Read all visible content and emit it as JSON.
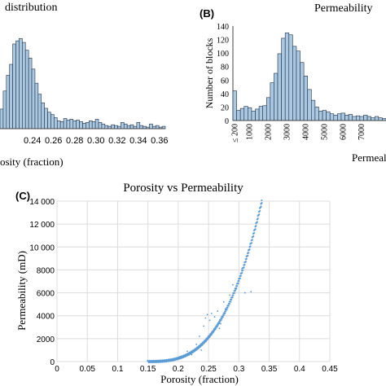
{
  "chart_data": [
    {
      "id": "A",
      "type": "bar",
      "title": "distribution",
      "xlabel": "osity (fraction)",
      "ylabel": "",
      "xlim": [
        0.2095,
        0.3655
      ],
      "ylim": [
        0,
        135
      ],
      "bin_start": 0.2095,
      "bin_width": 0.003,
      "tick_labels": [
        "0.24",
        "0.26",
        "0.28",
        "0.30",
        "0.32",
        "0.34",
        "0.36"
      ],
      "tick_values": [
        0.24,
        0.26,
        0.28,
        0.3,
        0.32,
        0.34,
        0.36
      ],
      "values": [
        25,
        48,
        68,
        82,
        108,
        112,
        115,
        110,
        100,
        90,
        76,
        58,
        44,
        33,
        26,
        21,
        18,
        14,
        10,
        9,
        13,
        11,
        12,
        10,
        11,
        9,
        7,
        8,
        10,
        9,
        12,
        8,
        6,
        4,
        3,
        5,
        4,
        3,
        8,
        6,
        4,
        5,
        3,
        8,
        4,
        3,
        2,
        6,
        3,
        4,
        2,
        3
      ],
      "bar_color": "#abc8e2",
      "edge_color": "#1f2f44",
      "grid": false
    },
    {
      "id": "B",
      "type": "bar",
      "title": "Permeability",
      "xlabel": "Permeal",
      "ylabel": "Number of blocks",
      "ylim": [
        0,
        140
      ],
      "y_ticks": [
        "0",
        "20",
        "40",
        "60",
        "80",
        "100",
        "120",
        "140"
      ],
      "categories": [
        "≤ 200",
        "",
        "",
        "",
        "",
        "",
        "",
        "",
        "",
        "",
        "",
        "",
        "",
        "",
        "",
        "",
        "",
        "",
        "",
        "",
        "",
        "",
        "",
        "",
        "",
        "",
        "",
        "",
        "",
        "",
        "",
        "",
        "",
        "",
        "",
        "",
        "",
        "",
        "",
        "",
        ""
      ],
      "values": [
        44,
        15,
        18,
        21,
        19,
        14,
        17,
        21,
        22,
        34,
        56,
        70,
        99,
        122,
        130,
        127,
        110,
        103,
        86,
        66,
        46,
        30,
        20,
        14,
        15,
        13,
        10,
        8,
        10,
        11,
        8,
        9,
        6,
        7,
        6,
        8,
        6,
        4,
        6,
        4,
        3
      ],
      "tick_labels": [
        "≤ 200",
        "1000",
        "2000",
        "3000",
        "4000",
        "5000",
        "6000",
        "7000"
      ],
      "tick_category_index": [
        0,
        4,
        9,
        14,
        19,
        24,
        29,
        34
      ],
      "bar_color": "#abc8e2",
      "edge_color": "#1f2f44",
      "grid": false
    },
    {
      "id": "C",
      "type": "scatter",
      "title": "Porosity vs Permeability",
      "xlabel": "Porosity (fraction)",
      "ylabel": "Permeability (mD)",
      "xlim": [
        0,
        0.45
      ],
      "ylim": [
        0,
        14000
      ],
      "x_ticks": [
        "0",
        "0.05",
        "0.1",
        "0.15",
        "0.2",
        "0.25",
        "0.3",
        "0.35",
        "0.4",
        "0.45"
      ],
      "y_ticks": [
        "0",
        "2000",
        "4000",
        "6000",
        "8000",
        "10 000",
        "12 000",
        "14 000"
      ],
      "grid": true,
      "point_color": "#5b9bd5",
      "trend": {
        "x_min": 0.15,
        "x_max": 0.338,
        "a": 0.2,
        "b": 0.21,
        "exponent": 3.1
      },
      "outliers": [
        [
          0.205,
          450
        ],
        [
          0.215,
          900
        ],
        [
          0.222,
          600
        ],
        [
          0.23,
          1500
        ],
        [
          0.238,
          1000
        ],
        [
          0.245,
          3800
        ],
        [
          0.248,
          4100
        ],
        [
          0.252,
          3600
        ],
        [
          0.255,
          4200
        ],
        [
          0.26,
          3900
        ],
        [
          0.265,
          4400
        ],
        [
          0.27,
          3300
        ],
        [
          0.275,
          5200
        ],
        [
          0.278,
          4600
        ],
        [
          0.285,
          5800
        ],
        [
          0.29,
          6700
        ],
        [
          0.295,
          6300
        ],
        [
          0.3,
          7200
        ],
        [
          0.31,
          6000
        ],
        [
          0.32,
          6100
        ],
        [
          0.305,
          8100
        ],
        [
          0.235,
          2200
        ],
        [
          0.242,
          3100
        ],
        [
          0.268,
          2900
        ],
        [
          0.282,
          4900
        ]
      ]
    }
  ],
  "panel_labels": {
    "b": "(B)",
    "c": "(C)"
  }
}
